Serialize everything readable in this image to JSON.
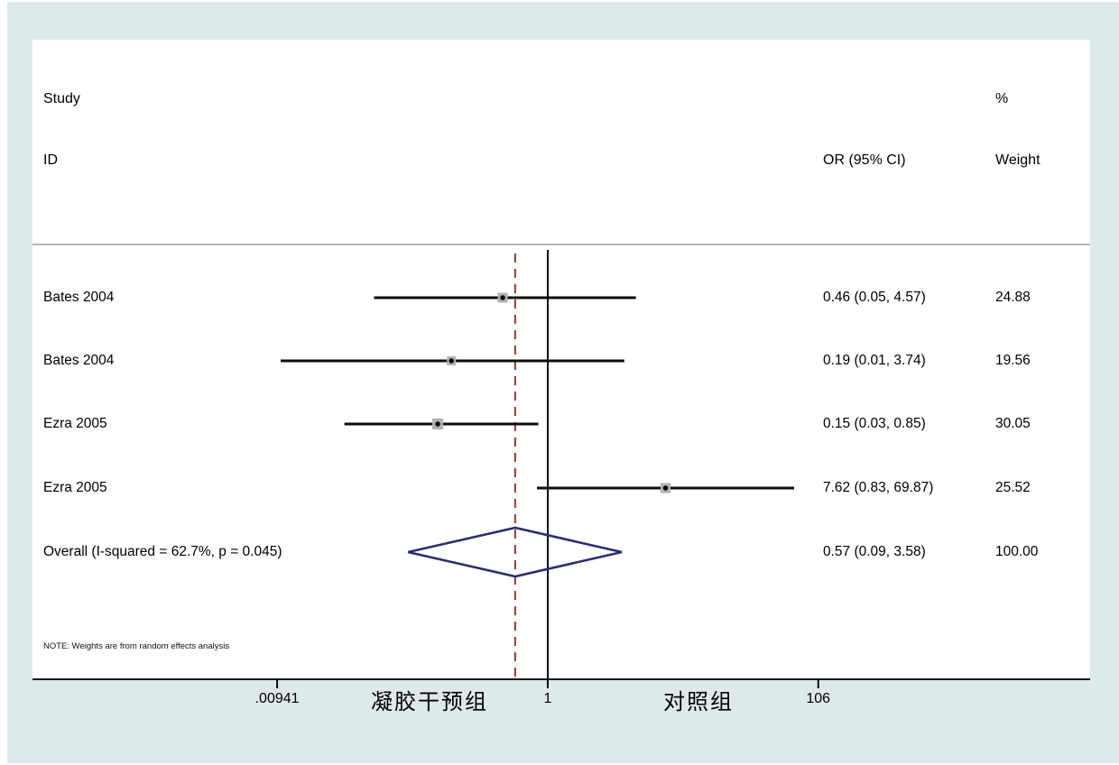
{
  "figure": {
    "background_color": "#dee9eb",
    "plot_background": "#ffffff"
  },
  "header": {
    "study_col_line1": "Study",
    "study_col_line2": "ID",
    "or_col": "OR (95% CI)",
    "weight_col_line1": "%",
    "weight_col_line2": "Weight"
  },
  "note": "NOTE: Weights are from random effects analysis",
  "chart_data": {
    "type": "forest",
    "x_scale": "log",
    "null_line_value": 1,
    "axis_ticks": [
      {
        "value": 0.00941,
        "label": ".00941"
      },
      {
        "value": 1,
        "label": "1"
      },
      {
        "value": 106,
        "label": "106"
      }
    ],
    "group_labels": [
      {
        "text": "凝胶干预组",
        "side": "left"
      },
      {
        "text": "对照组",
        "side": "right"
      }
    ],
    "studies": [
      {
        "id": "Bates 2004",
        "or": 0.46,
        "ci_low": 0.05,
        "ci_high": 4.57,
        "or_text": "0.46 (0.05, 4.57)",
        "weight": "24.88"
      },
      {
        "id": "Bates 2004",
        "or": 0.19,
        "ci_low": 0.01,
        "ci_high": 3.74,
        "or_text": "0.19 (0.01, 3.74)",
        "weight": "19.56"
      },
      {
        "id": "Ezra 2005",
        "or": 0.15,
        "ci_low": 0.03,
        "ci_high": 0.85,
        "or_text": "0.15 (0.03, 0.85)",
        "weight": "30.05"
      },
      {
        "id": "Ezra 2005",
        "or": 7.62,
        "ci_low": 0.83,
        "ci_high": 69.87,
        "or_text": "7.62 (0.83, 69.87)",
        "weight": "25.52"
      }
    ],
    "overall": {
      "label": "Overall  (I-squared = 62.7%, p = 0.045)",
      "or": 0.57,
      "ci_low": 0.09,
      "ci_high": 3.58,
      "or_text": "0.57 (0.09, 3.58)",
      "weight": "100.00"
    },
    "colors": {
      "ci_line": "#0d0d0d",
      "marker_fill": "#b1b1b1",
      "marker_dot": "#000000",
      "diamond_outline": "#2d2d70",
      "overall_dashed_line": "#953735",
      "axis_line": "#0d0d0d",
      "separator_line": "#8c8c8c"
    }
  }
}
